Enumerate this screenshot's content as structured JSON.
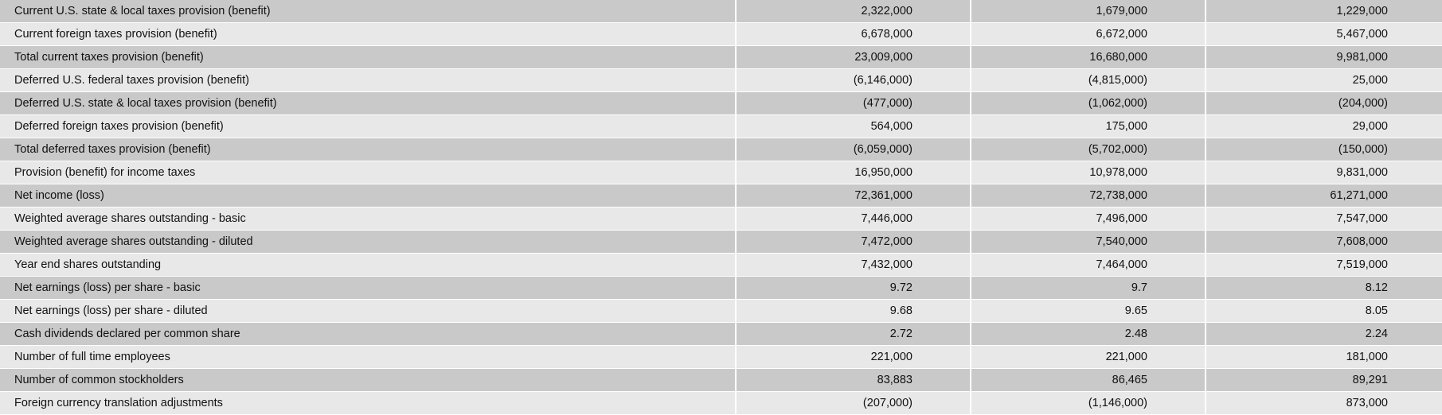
{
  "rows": [
    {
      "label": "Current U.S. state & local taxes provision (benefit)",
      "values": [
        "2,322,000",
        "1,679,000",
        "1,229,000"
      ]
    },
    {
      "label": "Current foreign taxes provision (benefit)",
      "values": [
        "6,678,000",
        "6,672,000",
        "5,467,000"
      ]
    },
    {
      "label": "Total current taxes provision (benefit)",
      "values": [
        "23,009,000",
        "16,680,000",
        "9,981,000"
      ]
    },
    {
      "label": "Deferred U.S. federal taxes provision (benefit)",
      "values": [
        "(6,146,000)",
        "(4,815,000)",
        "25,000"
      ]
    },
    {
      "label": "Deferred U.S. state & local taxes provision (benefit)",
      "values": [
        "(477,000)",
        "(1,062,000)",
        "(204,000)"
      ]
    },
    {
      "label": "Deferred foreign taxes provision (benefit)",
      "values": [
        "564,000",
        "175,000",
        "29,000"
      ]
    },
    {
      "label": "Total deferred taxes provision (benefit)",
      "values": [
        "(6,059,000)",
        "(5,702,000)",
        "(150,000)"
      ]
    },
    {
      "label": "Provision (benefit) for income taxes",
      "values": [
        "16,950,000",
        "10,978,000",
        "9,831,000"
      ]
    },
    {
      "label": "Net income (loss)",
      "values": [
        "72,361,000",
        "72,738,000",
        "61,271,000"
      ]
    },
    {
      "label": "Weighted average shares outstanding - basic",
      "values": [
        "7,446,000",
        "7,496,000",
        "7,547,000"
      ]
    },
    {
      "label": "Weighted average shares outstanding - diluted",
      "values": [
        "7,472,000",
        "7,540,000",
        "7,608,000"
      ]
    },
    {
      "label": "Year end shares outstanding",
      "values": [
        "7,432,000",
        "7,464,000",
        "7,519,000"
      ]
    },
    {
      "label": "Net earnings (loss) per share - basic",
      "values": [
        "9.72",
        "9.7",
        "8.12"
      ]
    },
    {
      "label": "Net earnings (loss) per share - diluted",
      "values": [
        "9.68",
        "9.65",
        "8.05"
      ]
    },
    {
      "label": "Cash dividends declared per common share",
      "values": [
        "2.72",
        "2.48",
        "2.24"
      ]
    },
    {
      "label": "Number of full time employees",
      "values": [
        "221,000",
        "221,000",
        "181,000"
      ]
    },
    {
      "label": "Number of common stockholders",
      "values": [
        "83,883",
        "86,465",
        "89,291"
      ]
    },
    {
      "label": "Foreign currency translation adjustments",
      "values": [
        "(207,000)",
        "(1,146,000)",
        "873,000"
      ]
    }
  ]
}
